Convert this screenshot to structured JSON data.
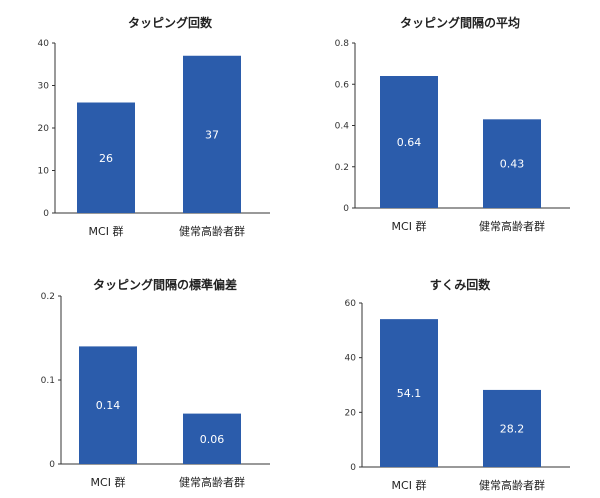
{
  "colors": {
    "bar": "#2B5CAB",
    "axis": "#333333",
    "value_label": "#ffffff"
  },
  "chart_data": [
    {
      "type": "bar",
      "title": "タッピング回数",
      "categories": [
        "MCI 群",
        "健常高齢者群"
      ],
      "values": [
        26,
        37
      ],
      "value_labels": [
        "26",
        "37"
      ],
      "yticks": [
        "0",
        "10",
        "20",
        "30",
        "40"
      ],
      "ylim": [
        0,
        40
      ],
      "grid": false
    },
    {
      "type": "bar",
      "title": "タッピング間隔の平均",
      "categories": [
        "MCI 群",
        "健常高齢者群"
      ],
      "values": [
        0.64,
        0.43
      ],
      "value_labels": [
        "0.64",
        "0.43"
      ],
      "yticks": [
        "0",
        "0.2",
        "0.4",
        "0.6",
        "0.8"
      ],
      "ylim": [
        0,
        0.8
      ],
      "grid": false
    },
    {
      "type": "bar",
      "title": "タッピング間隔の標準偏差",
      "categories": [
        "MCI 群",
        "健常高齢者群"
      ],
      "values": [
        0.14,
        0.06
      ],
      "value_labels": [
        "0.14",
        "0.06"
      ],
      "yticks": [
        "0",
        "0.1",
        "0.2"
      ],
      "ylim": [
        0,
        0.2
      ],
      "grid": false
    },
    {
      "type": "bar",
      "title": "すくみ回数",
      "categories": [
        "MCI 群",
        "健常高齢者群"
      ],
      "values": [
        54.1,
        28.2
      ],
      "value_labels": [
        "54.1",
        "28.2"
      ],
      "yticks": [
        "0",
        "20",
        "40",
        "60"
      ],
      "ylim": [
        0,
        60
      ],
      "grid": false
    }
  ]
}
